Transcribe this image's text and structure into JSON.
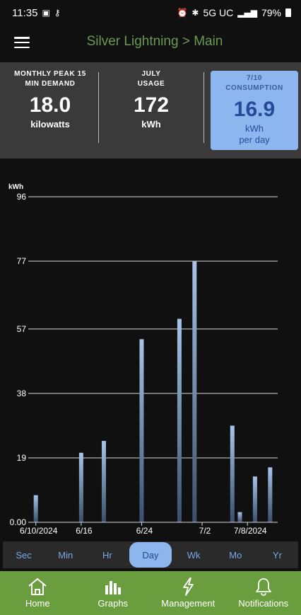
{
  "status": {
    "time": "11:35",
    "network": "5G UC",
    "battery": "79%"
  },
  "header": {
    "title": "Silver Lightning > Main"
  },
  "summary": {
    "peak": {
      "label_line1": "MONTHLY PEAK 15",
      "label_line2": "MIN DEMAND",
      "value": "18.0",
      "unit": "kilowatts"
    },
    "usage": {
      "label_line1": "JULY",
      "label_line2": "USAGE",
      "value": "172",
      "unit": "kWh"
    },
    "consumption": {
      "label_line1": "7/10",
      "label_line2": "CONSUMPTION",
      "value": "16.9",
      "unit_line1": "kWh",
      "unit_line2": "per day"
    }
  },
  "chart_data": {
    "type": "bar",
    "ylabel": "kWh",
    "ylim": [
      0,
      96
    ],
    "yticks": [
      "0.00",
      "19",
      "38",
      "57",
      "77",
      "96"
    ],
    "ytick_values": [
      0,
      19,
      38,
      57,
      77,
      96
    ],
    "xtick_labels": [
      "6/10/2024",
      "6/16",
      "6/24",
      "7/2",
      "7/8/2024"
    ],
    "xtick_days": [
      0,
      6,
      14,
      22,
      28
    ],
    "grid": true,
    "bars": [
      {
        "day": 0,
        "value": 8
      },
      {
        "day": 6,
        "value": 20.5
      },
      {
        "day": 9,
        "value": 24
      },
      {
        "day": 14,
        "value": 54
      },
      {
        "day": 19,
        "value": 60
      },
      {
        "day": 21,
        "value": 77
      },
      {
        "day": 26,
        "value": 28.5
      },
      {
        "day": 27,
        "value": 3
      },
      {
        "day": 29,
        "value": 13.5
      },
      {
        "day": 31,
        "value": 16.2
      }
    ],
    "x_day_range": [
      -1,
      32
    ],
    "bar_color_top": "#a8c4ea",
    "bar_color_bottom": "#3b4f6b"
  },
  "range": {
    "options": [
      "Sec",
      "Min",
      "Hr",
      "Day",
      "Wk",
      "Mo",
      "Yr"
    ],
    "selected": "Day"
  },
  "nav": {
    "items": [
      {
        "label": "Home",
        "icon": "home-icon"
      },
      {
        "label": "Graphs",
        "icon": "graphs-icon"
      },
      {
        "label": "Management",
        "icon": "lightning-icon"
      },
      {
        "label": "Notifications",
        "icon": "bell-icon"
      }
    ]
  },
  "colors": {
    "accent_green": "#6a9d3d",
    "title_green": "#6a9a54",
    "highlight_blue": "#8eb6ee"
  }
}
